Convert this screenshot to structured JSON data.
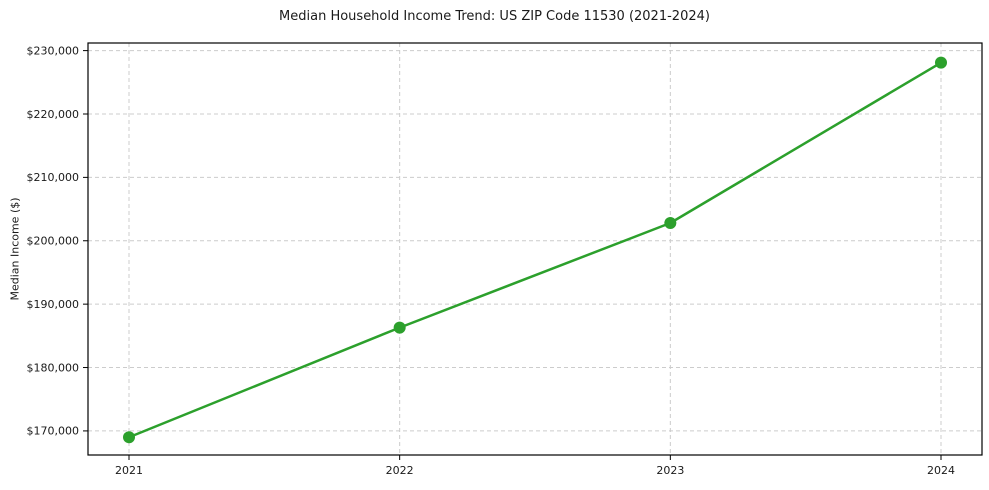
{
  "chart_data": {
    "type": "line",
    "title": "Median Household Income Trend: US ZIP Code 11530 (2021-2024)",
    "xlabel": "",
    "ylabel": "Median Income ($)",
    "categories": [
      "2021",
      "2022",
      "2023",
      "2024"
    ],
    "series": [
      {
        "name": "median-household-income",
        "values": [
          169000,
          186300,
          202800,
          228100
        ],
        "color": "#2ca02c",
        "marker": "circle"
      }
    ],
    "yticks": [
      170000,
      180000,
      190000,
      200000,
      210000,
      220000,
      230000
    ],
    "ytick_labels": [
      "$170,000",
      "$180,000",
      "$190,000",
      "$200,000",
      "$210,000",
      "$220,000",
      "$230,000"
    ],
    "ylim": [
      166200,
      231200
    ],
    "grid": "both, dashed",
    "legend": "none",
    "colors": {
      "line": "#2ca02c",
      "grid": "#cccccc",
      "spine": "#000000",
      "text": "#1a1a1a",
      "background": "#ffffff"
    }
  }
}
